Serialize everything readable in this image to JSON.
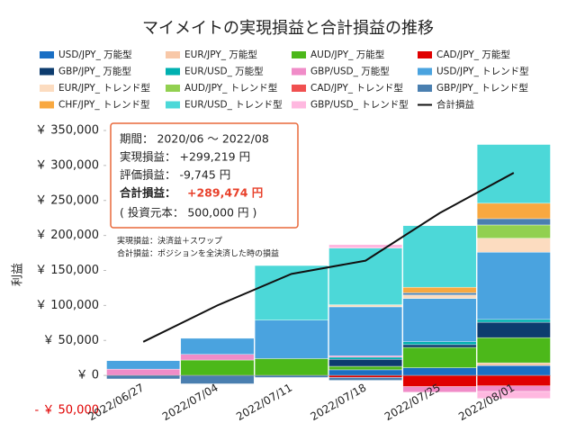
{
  "chart_data": {
    "type": "stacked_bar_line",
    "title": "マイメイトの実現損益と合計損益の推移",
    "y_label": "利益",
    "categories": [
      "2022/06/27",
      "2022/07/04",
      "2022/07/11",
      "2022/07/18",
      "2022/07/25",
      "2022/08/01"
    ],
    "ylim": [
      -50000,
      350000
    ],
    "yticks": [
      {
        "value": -50000,
        "label": "- ￥ 50,000"
      },
      {
        "value": 0,
        "label": "￥ 0"
      },
      {
        "value": 50000,
        "label": "￥ 50,000"
      },
      {
        "value": 100000,
        "label": "￥ 100,000"
      },
      {
        "value": 150000,
        "label": "￥ 150,000"
      },
      {
        "value": 200000,
        "label": "￥ 200,000"
      },
      {
        "value": 250000,
        "label": "￥ 250,000"
      },
      {
        "value": 300000,
        "label": "￥ 300,000"
      },
      {
        "value": 350000,
        "label": "￥ 350,000"
      }
    ],
    "series": [
      {
        "name": "USD/JPY_ 万能型",
        "color": "#1a6fc4",
        "values": [
          0,
          0,
          0,
          8000,
          11000,
          14000
        ]
      },
      {
        "name": "EUR/JPY_ 万能型",
        "color": "#f8c8a8",
        "values": [
          0,
          0,
          0,
          0,
          0,
          4000
        ]
      },
      {
        "name": "AUD/JPY_ 万能型",
        "color": "#4cb81a",
        "values": [
          0,
          22000,
          24000,
          5000,
          29000,
          36000
        ]
      },
      {
        "name": "CAD/JPY_ 万能型",
        "color": "#e00000",
        "values": [
          0,
          0,
          0,
          -3000,
          -16000,
          -15000
        ]
      },
      {
        "name": "GBP/JPY_ 万能型",
        "color": "#0d3c6e",
        "values": [
          0,
          0,
          0,
          10000,
          4000,
          22000
        ]
      },
      {
        "name": "EUR/USD_ 万能型",
        "color": "#00b0b0",
        "values": [
          0,
          0,
          0,
          3000,
          4000,
          4000
        ]
      },
      {
        "name": "GBP/USD_ 万能型",
        "color": "#f08cc8",
        "values": [
          9000,
          8000,
          0,
          2000,
          -8000,
          -8000
        ]
      },
      {
        "name": "USD/JPY_ トレンド型",
        "color": "#4aa3df",
        "values": [
          12000,
          23000,
          55000,
          70000,
          62000,
          96000
        ]
      },
      {
        "name": "EUR/JPY_ トレンド型",
        "color": "#fcdcc0",
        "values": [
          0,
          0,
          0,
          3000,
          5000,
          20000
        ]
      },
      {
        "name": "AUD/JPY_ トレンド型",
        "color": "#92d050",
        "values": [
          0,
          0,
          0,
          0,
          0,
          19000
        ]
      },
      {
        "name": "CAD/JPY_ トレンド型",
        "color": "#f05050",
        "values": [
          0,
          0,
          0,
          0,
          0,
          0
        ]
      },
      {
        "name": "GBP/JPY_ トレンド型",
        "color": "#4a7fb0",
        "values": [
          -5000,
          -12000,
          -3000,
          -4000,
          3000,
          9000
        ]
      },
      {
        "name": "CHF/JPY_ トレンド型",
        "color": "#f8a840",
        "values": [
          0,
          0,
          0,
          0,
          8000,
          22000
        ]
      },
      {
        "name": "EUR/USD_ トレンド型",
        "color": "#4cd8d8",
        "values": [
          0,
          0,
          78000,
          81000,
          88000,
          84000
        ]
      },
      {
        "name": "GBP/USD_ トレンド型",
        "color": "#ffb8e0",
        "values": [
          0,
          0,
          0,
          5000,
          0,
          -10000
        ]
      },
      {
        "name": "合計損益",
        "type": "line",
        "color": "#111111",
        "values": [
          48000,
          100000,
          145000,
          164000,
          232000,
          289474
        ]
      }
    ],
    "info_box": {
      "period": "期間： 2020/06 ～ 2022/08",
      "realized": "実現損益： +299,219 円",
      "unrealized": "評価損益： -9,745 円",
      "total_label": "合計損益：",
      "total_value": "+289,474 円",
      "principal": "( 投資元本： 500,000 円 )"
    },
    "notes": [
      "実現損益：決済益＋スワップ",
      "合計損益：ポジションを全決済した時の損益"
    ]
  }
}
